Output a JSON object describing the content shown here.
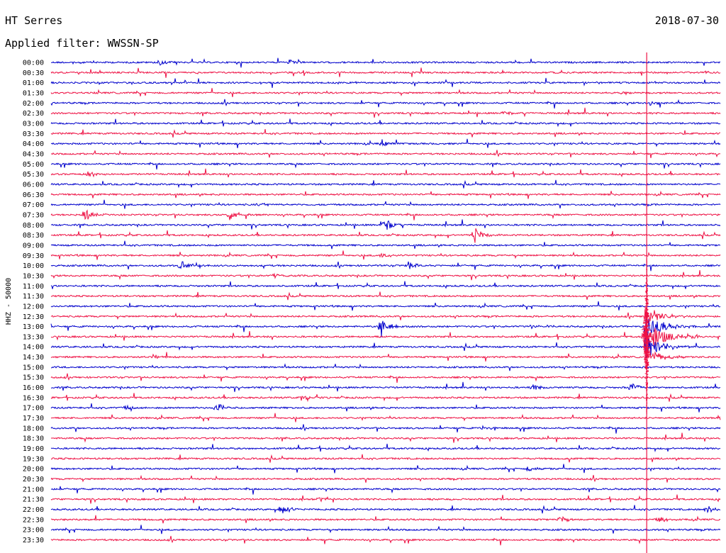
{
  "header": {
    "station": "HT Serres",
    "date": "2018-07-30",
    "filter_text": "Applied filter: WWSSN-SP"
  },
  "colors": {
    "series_a": "#0000cc",
    "series_b": "#ee1144",
    "background": "#ffffff"
  },
  "chart_data": {
    "type": "line",
    "title": "",
    "ylabel": "HHZ - 50000",
    "xlabel": "",
    "grid": false,
    "row_labels": [
      "00:00",
      "00:30",
      "01:00",
      "01:30",
      "02:00",
      "02:30",
      "03:00",
      "03:30",
      "04:00",
      "04:30",
      "05:00",
      "05:30",
      "06:00",
      "06:30",
      "07:00",
      "07:30",
      "08:00",
      "08:30",
      "09:00",
      "09:30",
      "10:00",
      "10:30",
      "11:00",
      "11:30",
      "12:00",
      "12:30",
      "13:00",
      "13:30",
      "14:00",
      "14:30",
      "15:00",
      "15:30",
      "16:00",
      "16:30",
      "17:00",
      "17:30",
      "18:00",
      "18:30",
      "19:00",
      "19:30",
      "20:00",
      "20:30",
      "21:00",
      "21:30",
      "22:00",
      "22:30",
      "23:00",
      "23:30"
    ],
    "row_minutes": 30,
    "events": [
      {
        "row": "00:00",
        "minute": 4.8,
        "amplitude": 0.5
      },
      {
        "row": "00:00",
        "minute": 10.6,
        "amplitude": 0.45
      },
      {
        "row": "01:30",
        "minute": 25.6,
        "amplitude": 0.35
      },
      {
        "row": "02:00",
        "minute": 26.8,
        "amplitude": 0.4
      },
      {
        "row": "02:30",
        "minute": 20.3,
        "amplitude": 0.4
      },
      {
        "row": "04:00",
        "minute": 14.8,
        "amplitude": 0.4
      },
      {
        "row": "05:30",
        "minute": 1.7,
        "amplitude": 0.5
      },
      {
        "row": "07:00",
        "minute": 9.3,
        "amplitude": 0.4
      },
      {
        "row": "07:30",
        "minute": 1.5,
        "amplitude": 1.2
      },
      {
        "row": "07:30",
        "minute": 8.0,
        "amplitude": 0.9
      },
      {
        "row": "08:00",
        "minute": 14.9,
        "amplitude": 1.4
      },
      {
        "row": "08:30",
        "minute": 19.0,
        "amplitude": 1.3
      },
      {
        "row": "09:30",
        "minute": 14.8,
        "amplitude": 0.5
      },
      {
        "row": "10:00",
        "minute": 5.8,
        "amplitude": 0.8
      },
      {
        "row": "10:00",
        "minute": 16.0,
        "amplitude": 0.6
      },
      {
        "row": "10:30",
        "minute": 10.0,
        "amplitude": 0.4
      },
      {
        "row": "12:30",
        "minute": 26.6,
        "amplitude": 0.4
      },
      {
        "row": "13:00",
        "minute": 14.8,
        "amplitude": 1.5
      },
      {
        "row": "13:00",
        "minute": 21.5,
        "amplitude": 0.5
      },
      {
        "row": "13:30",
        "minute": 28.7,
        "amplitude": 0.6
      },
      {
        "row": "14:30",
        "minute": 4.5,
        "amplitude": 0.4
      },
      {
        "row": "16:00",
        "minute": 21.6,
        "amplitude": 0.6
      },
      {
        "row": "16:00",
        "minute": 26.0,
        "amplitude": 0.8
      },
      {
        "row": "16:30",
        "minute": 11.2,
        "amplitude": 0.4
      },
      {
        "row": "17:00",
        "minute": 3.3,
        "amplitude": 0.4
      },
      {
        "row": "17:00",
        "minute": 7.4,
        "amplitude": 0.9
      },
      {
        "row": "17:30",
        "minute": 30.0,
        "amplitude": 0.5
      },
      {
        "row": "18:00",
        "minute": 19.3,
        "amplitude": 0.5
      },
      {
        "row": "20:00",
        "minute": 21.3,
        "amplitude": 0.5
      },
      {
        "row": "21:30",
        "minute": 12.0,
        "amplitude": 0.35
      },
      {
        "row": "22:00",
        "minute": 10.3,
        "amplitude": 0.9
      },
      {
        "row": "22:00",
        "minute": 29.4,
        "amplitude": 0.6
      },
      {
        "row": "22:30",
        "minute": 22.8,
        "amplitude": 0.5
      },
      {
        "row": "22:30",
        "minute": 27.2,
        "amplitude": 0.6
      }
    ],
    "main_quake": {
      "row": "13:30",
      "minute": 26.7,
      "peak_amplitude": 4.5
    }
  }
}
